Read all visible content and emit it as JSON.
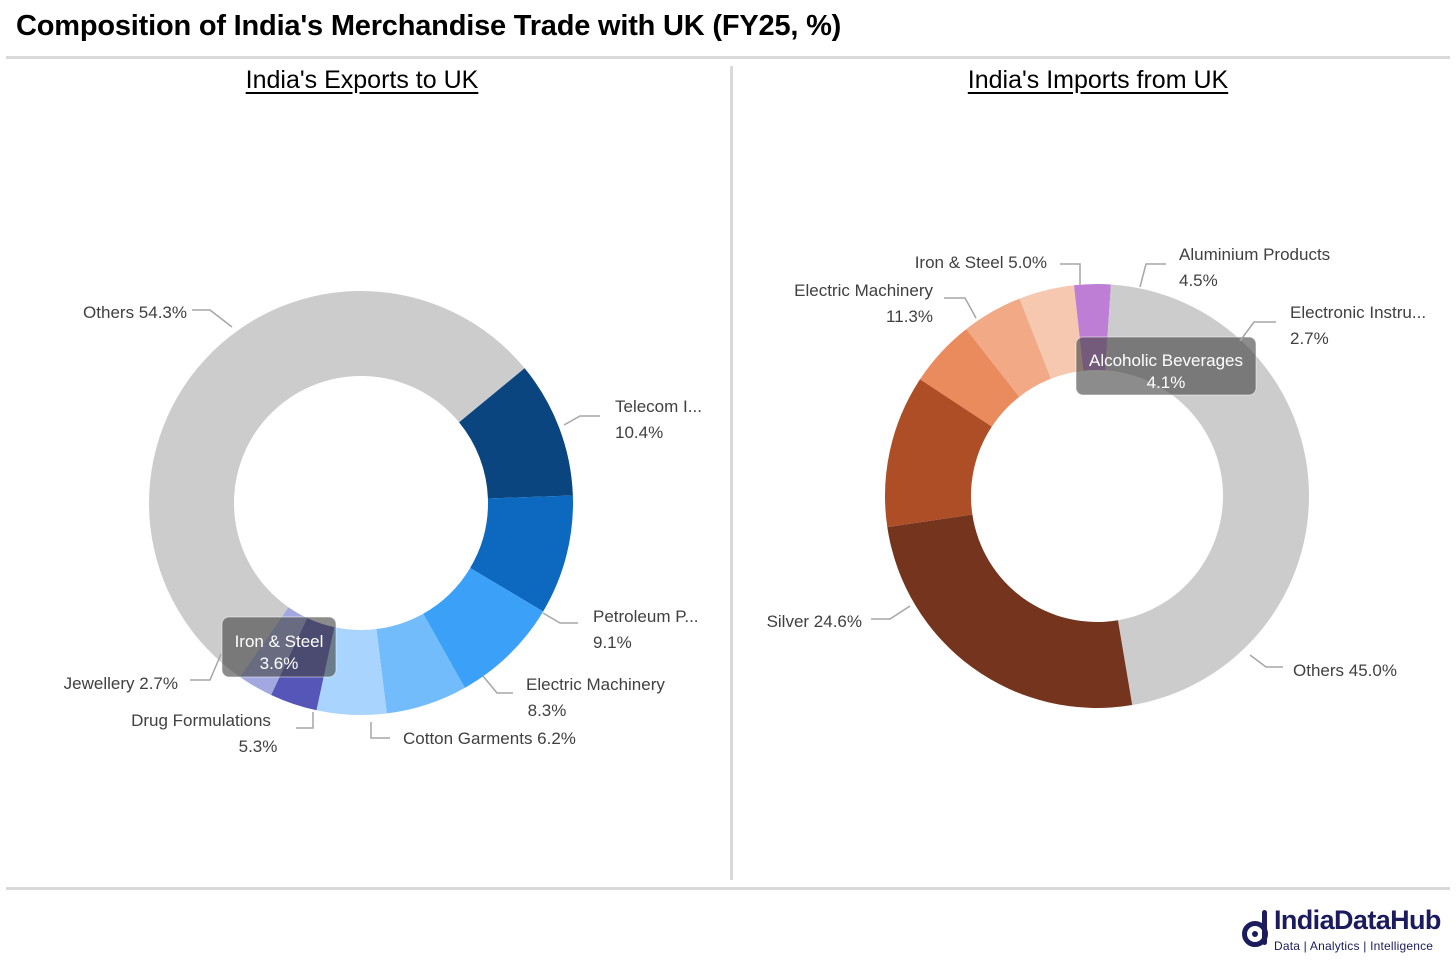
{
  "title": "Composition of India's Merchandise Trade with UK (FY25, %)",
  "colors": {
    "rule": "#d9d9d9",
    "brand": "#1b1b5e",
    "others": "#cccccc"
  },
  "chart_data": [
    {
      "type": "pie",
      "variant": "donut",
      "title": "India's Exports to UK",
      "slices": [
        {
          "label": "Telecom I...",
          "value": 10.4,
          "value_text": "10.4%",
          "color": "#0b457f"
        },
        {
          "label": "Petroleum P...",
          "value": 9.1,
          "value_text": "9.1%",
          "color": "#0d69c0"
        },
        {
          "label": "Electric Machinery",
          "value": 8.3,
          "value_text": "8.3%",
          "color": "#3aa0f8"
        },
        {
          "label": "Cotton Garments",
          "value": 6.2,
          "value_text": "6.2%",
          "color": "#72bcfb"
        },
        {
          "label": "Drug Formulations",
          "value": 5.3,
          "value_text": "5.3%",
          "color": "#a8d4fd"
        },
        {
          "label": "Iron & Steel",
          "value": 3.6,
          "value_text": "3.6%",
          "color": "#5656b8"
        },
        {
          "label": "Jewellery",
          "value": 2.7,
          "value_text": "2.7%",
          "color": "#a3a8e0"
        },
        {
          "label": "Others",
          "value": 54.3,
          "value_text": "54.3%",
          "color": "#cccccc"
        }
      ]
    },
    {
      "type": "pie",
      "variant": "donut",
      "title": "India's Imports from UK",
      "slices": [
        {
          "label": "Iron & Steel",
          "value": 5.0,
          "value_text": "5.0%",
          "color": "#ea8b5e"
        },
        {
          "label": "Aluminium Products",
          "value": 4.5,
          "value_text": "4.5%",
          "color": "#f1a986"
        },
        {
          "label": "Alcoholic Beverages",
          "value": 4.1,
          "value_text": "4.1%",
          "color": "#f6c8b0"
        },
        {
          "label": "Electronic Instru...",
          "value": 2.7,
          "value_text": "2.7%",
          "color": "#bf7ed6"
        },
        {
          "label": "Others",
          "value": 45.0,
          "value_text": "45.0%",
          "color": "#cccccc"
        },
        {
          "label": "Silver",
          "value": 24.6,
          "value_text": "24.6%",
          "color": "#74341e"
        },
        {
          "label": "Electric Machinery",
          "value": 11.3,
          "value_text": "11.3%",
          "color": "#ad4e26"
        }
      ]
    }
  ],
  "logo": {
    "name": "IndiaDataHub",
    "tagline": "Data | Analytics | Intelligence"
  }
}
